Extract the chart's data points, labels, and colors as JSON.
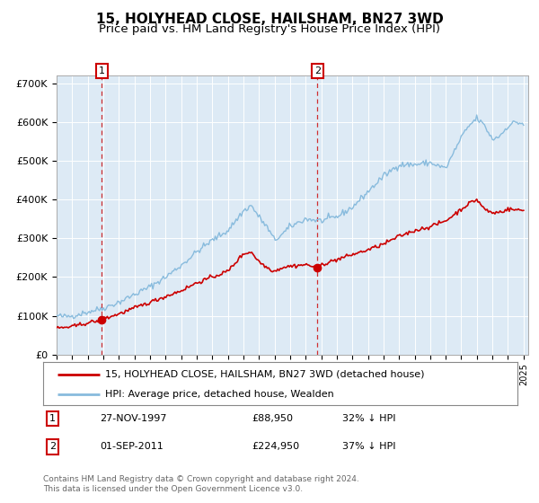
{
  "title": "15, HOLYHEAD CLOSE, HAILSHAM, BN27 3WD",
  "subtitle": "Price paid vs. HM Land Registry's House Price Index (HPI)",
  "ylim": [
    0,
    720000
  ],
  "yticks": [
    0,
    100000,
    200000,
    300000,
    400000,
    500000,
    600000,
    700000
  ],
  "ytick_labels": [
    "£0",
    "£100K",
    "£200K",
    "£300K",
    "£400K",
    "£500K",
    "£600K",
    "£700K"
  ],
  "hpi_color": "#88bbdd",
  "price_color": "#cc0000",
  "marker_color": "#cc0000",
  "grid_color": "#cccccc",
  "bg_color": "#ddeaf5",
  "sale1_price": 88950,
  "sale1_x": 1997.9,
  "sale2_price": 224950,
  "sale2_x": 2011.75,
  "legend_line1": "15, HOLYHEAD CLOSE, HAILSHAM, BN27 3WD (detached house)",
  "legend_line2": "HPI: Average price, detached house, Wealden",
  "footer": "Contains HM Land Registry data © Crown copyright and database right 2024.\nThis data is licensed under the Open Government Licence v3.0.",
  "title_fontsize": 11,
  "subtitle_fontsize": 9.5,
  "hpi_anchors_x": [
    1995,
    1995.5,
    1996,
    1997,
    1998,
    1999,
    2000,
    2001,
    2002,
    2003,
    2004,
    2005,
    2006,
    2007,
    2007.5,
    2008,
    2008.5,
    2009,
    2009.5,
    2010,
    2011,
    2012,
    2013,
    2014,
    2015,
    2016,
    2017,
    2018,
    2019,
    2020,
    2021,
    2021.5,
    2022,
    2022.5,
    2023,
    2023.5,
    2024,
    2024.5,
    2025
  ],
  "hpi_anchors_y": [
    100000,
    98000,
    100000,
    110000,
    120000,
    135000,
    155000,
    175000,
    200000,
    230000,
    265000,
    295000,
    320000,
    370000,
    385000,
    355000,
    330000,
    295000,
    310000,
    330000,
    350000,
    345000,
    355000,
    380000,
    420000,
    460000,
    490000,
    490000,
    495000,
    480000,
    560000,
    590000,
    610000,
    590000,
    555000,
    565000,
    590000,
    600000,
    595000
  ],
  "price_anchors_x": [
    1995,
    1996,
    1997,
    1997.9,
    1998,
    1999,
    2000,
    2001,
    2002,
    2003,
    2004,
    2005,
    2006,
    2007,
    2007.5,
    2008,
    2008.5,
    2009,
    2009.5,
    2010,
    2011,
    2011.75,
    2012,
    2013,
    2014,
    2015,
    2016,
    2017,
    2018,
    2019,
    2020,
    2021,
    2021.5,
    2022,
    2022.5,
    2023,
    2023.5,
    2024,
    2025
  ],
  "price_anchors_y": [
    68000,
    72000,
    82000,
    88950,
    92000,
    105000,
    120000,
    135000,
    150000,
    165000,
    185000,
    200000,
    215000,
    260000,
    265000,
    240000,
    225000,
    215000,
    225000,
    228000,
    232000,
    224950,
    232000,
    245000,
    258000,
    270000,
    285000,
    305000,
    320000,
    330000,
    345000,
    375000,
    390000,
    400000,
    375000,
    365000,
    368000,
    375000,
    372000
  ]
}
